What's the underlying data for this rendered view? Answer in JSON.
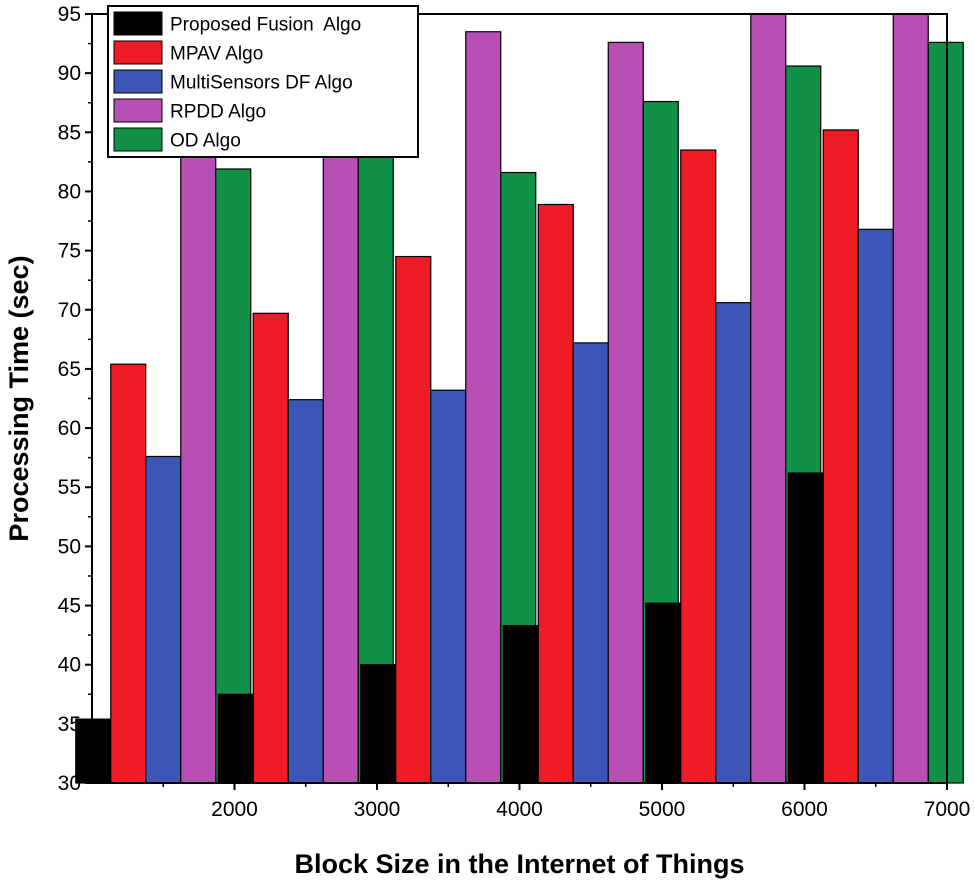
{
  "chart_data": {
    "type": "bar",
    "title": "",
    "xlabel": "Block Size in the Internet of Things",
    "ylabel": "Processing Time (sec)",
    "ylim": [
      30,
      95
    ],
    "yticks": [
      30,
      35,
      40,
      45,
      50,
      55,
      60,
      65,
      70,
      75,
      80,
      85,
      90,
      95
    ],
    "xlim": [
      1000,
      7000
    ],
    "xticks": [
      2000,
      3000,
      4000,
      5000,
      6000,
      7000
    ],
    "group_centers": [
      1500,
      2500,
      3500,
      4500,
      5500,
      6500
    ],
    "grid": false,
    "legend_position": "top-left",
    "series": [
      {
        "name": "Proposed Fusion  Algo",
        "color": "#000000",
        "values": [
          35.4,
          37.5,
          40.0,
          43.3,
          45.2,
          56.2
        ]
      },
      {
        "name": "MPAV Algo",
        "color": "#ee1c24",
        "values": [
          65.4,
          69.7,
          74.5,
          78.9,
          83.5,
          85.2
        ]
      },
      {
        "name": "MultiSensors DF Algo",
        "color": "#3b56b5",
        "values": [
          57.6,
          62.4,
          63.2,
          67.2,
          70.6,
          76.8
        ]
      },
      {
        "name": "RPDD Algo",
        "color": "#b84fb4",
        "values": [
          87.5,
          89.6,
          93.5,
          92.6,
          95.0,
          95.0
        ]
      },
      {
        "name": "OD Algo",
        "color": "#119148",
        "values": [
          81.9,
          84.5,
          81.6,
          87.6,
          90.6,
          92.6
        ]
      }
    ]
  }
}
